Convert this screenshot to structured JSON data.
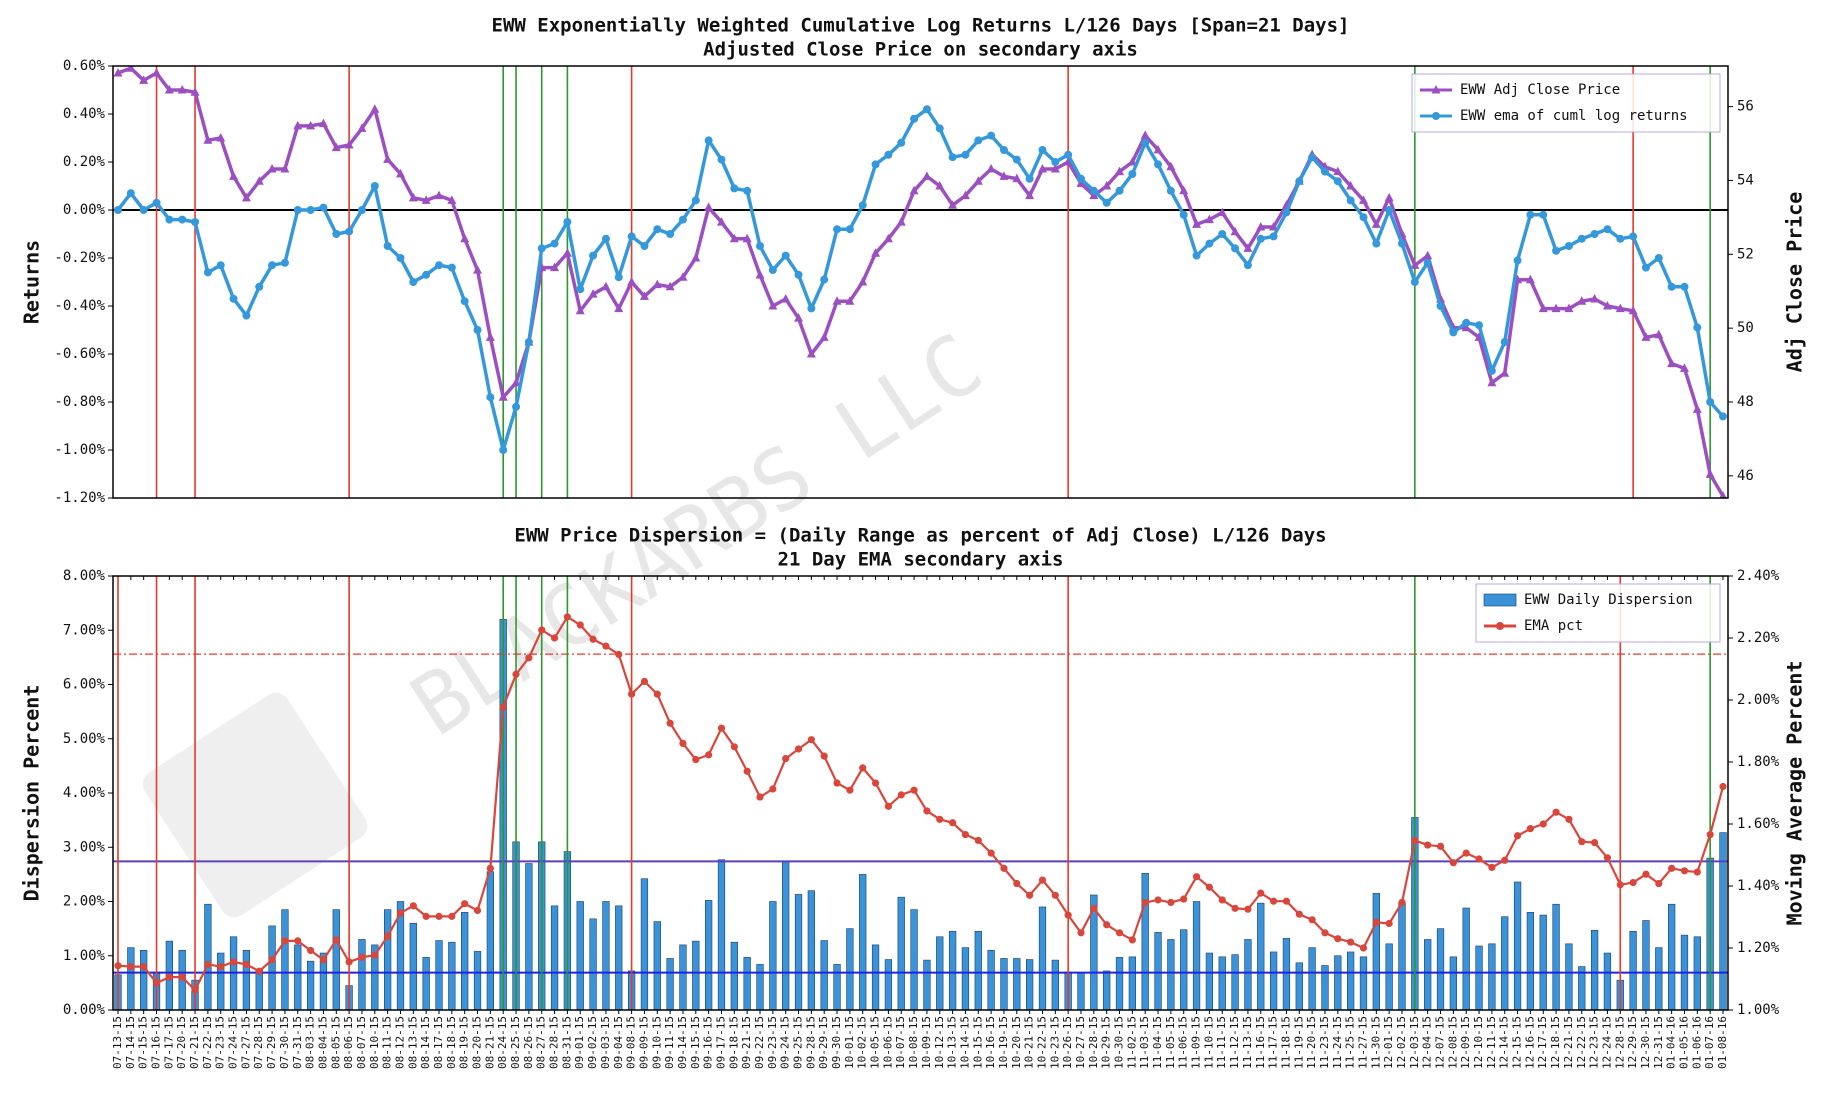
{
  "watermark": "BLACKARBS LLC",
  "chart_data": [
    {
      "type": "line",
      "title": "EWW Exponentially Weighted Cumulative Log Returns L/126 Days [Span=21 Days]",
      "subtitle": "Adjusted Close Price on secondary axis",
      "ylabel": "Returns",
      "y2label": "Adj Close Price",
      "ylim": [
        -1.2,
        0.6
      ],
      "yticks": [
        {
          "value": 0.6,
          "label": "0.60%"
        },
        {
          "value": 0.4,
          "label": "0.40%"
        },
        {
          "value": 0.2,
          "label": "0.20%"
        },
        {
          "value": 0,
          "label": "0.00%"
        },
        {
          "value": -0.2,
          "label": "-0.20%"
        },
        {
          "value": -0.4,
          "label": "-0.40%"
        },
        {
          "value": -0.6,
          "label": "-0.60%"
        },
        {
          "value": -0.8,
          "label": "-0.80%"
        },
        {
          "value": -1.0,
          "label": "-1.00%"
        },
        {
          "value": -1.2,
          "label": "-1.20%"
        }
      ],
      "y2lim": [
        45.4,
        57.1
      ],
      "y2ticks": [
        46,
        48,
        50,
        52,
        54,
        56
      ],
      "legend": "upper right",
      "hlines": [
        {
          "value": 0,
          "color": "#000000"
        }
      ],
      "vlines": [
        {
          "x": "07-16-15",
          "color": "#e8392b"
        },
        {
          "x": "07-21-15",
          "color": "#e8392b"
        },
        {
          "x": "08-06-15",
          "color": "#e8392b"
        },
        {
          "x": "09-08-15",
          "color": "#e8392b"
        },
        {
          "x": "10-26-15",
          "color": "#e8392b"
        },
        {
          "x": "12-29-15",
          "color": "#e8392b"
        },
        {
          "x": "08-24-15",
          "color": "#2b9a2b"
        },
        {
          "x": "08-25-15",
          "color": "#2b9a2b"
        },
        {
          "x": "08-27-15",
          "color": "#2b9a2b"
        },
        {
          "x": "08-31-15",
          "color": "#2b9a2b"
        },
        {
          "x": "12-03-15",
          "color": "#2b9a2b"
        },
        {
          "x": "01-07-16",
          "color": "#2b9a2b"
        }
      ],
      "series": [
        {
          "name": "EWW Adj Close Price",
          "color": "#9b4fc0",
          "type": "line",
          "marker": "triangle",
          "axis": "y2",
          "values": [
            56.91,
            57.04,
            56.71,
            56.91,
            56.45,
            56.45,
            56.39,
            55.09,
            55.15,
            54.11,
            53.53,
            53.98,
            54.31,
            54.31,
            55.48,
            55.48,
            55.54,
            54.89,
            54.96,
            55.41,
            55.93,
            54.57,
            54.18,
            53.53,
            53.46,
            53.59,
            53.46,
            52.42,
            51.57,
            49.75,
            48.13,
            48.52,
            49.62,
            51.64,
            51.64,
            52.03,
            50.47,
            50.92,
            51.12,
            50.53,
            51.25,
            50.86,
            51.18,
            51.12,
            51.38,
            51.9,
            53.27,
            52.87,
            52.42,
            52.42,
            51.44,
            50.6,
            50.79,
            50.27,
            49.3,
            49.75,
            50.73,
            50.73,
            51.25,
            52.03,
            52.42,
            52.87,
            53.72,
            54.11,
            53.85,
            53.33,
            53.59,
            53.98,
            54.31,
            54.11,
            54.05,
            53.59,
            54.31,
            54.31,
            54.5,
            53.92,
            53.59,
            53.85,
            54.24,
            54.5,
            55.22,
            54.83,
            54.37,
            53.72,
            52.81,
            52.94,
            53.13,
            52.61,
            52.16,
            52.74,
            52.74,
            53.33,
            53.98,
            54.7,
            54.37,
            54.24,
            53.85,
            53.46,
            52.81,
            53.53,
            52.55,
            51.7,
            51.96,
            50.79,
            50.01,
            50.01,
            49.75,
            48.52,
            48.78,
            51.31,
            51.31,
            50.53,
            50.53,
            50.53,
            50.73,
            50.79,
            50.6,
            50.53,
            50.47,
            49.75,
            49.82,
            49.04,
            48.91,
            47.8,
            46.04,
            45.45
          ]
        },
        {
          "name": "EWW ema of cuml log returns",
          "color": "#3498db",
          "type": "line",
          "marker": "circle",
          "axis": "y",
          "values": [
            0.0,
            0.07,
            0.0,
            0.03,
            -0.04,
            -0.04,
            -0.05,
            -0.26,
            -0.23,
            -0.37,
            -0.44,
            -0.32,
            -0.23,
            -0.22,
            0.0,
            0.0,
            0.01,
            -0.1,
            -0.09,
            0.0,
            0.1,
            -0.15,
            -0.2,
            -0.3,
            -0.27,
            -0.23,
            -0.24,
            -0.38,
            -0.5,
            -0.78,
            -1.0,
            -0.82,
            -0.55,
            -0.16,
            -0.14,
            -0.05,
            -0.33,
            -0.19,
            -0.12,
            -0.28,
            -0.11,
            -0.15,
            -0.08,
            -0.1,
            -0.04,
            0.04,
            0.29,
            0.21,
            0.09,
            0.08,
            -0.15,
            -0.25,
            -0.19,
            -0.27,
            -0.41,
            -0.29,
            -0.08,
            -0.08,
            0.02,
            0.19,
            0.23,
            0.28,
            0.38,
            0.42,
            0.34,
            0.22,
            0.23,
            0.29,
            0.31,
            0.25,
            0.21,
            0.13,
            0.25,
            0.2,
            0.23,
            0.13,
            0.08,
            0.03,
            0.08,
            0.15,
            0.28,
            0.19,
            0.08,
            -0.02,
            -0.19,
            -0.14,
            -0.1,
            -0.16,
            -0.23,
            -0.12,
            -0.11,
            -0.01,
            0.12,
            0.22,
            0.16,
            0.12,
            0.04,
            -0.03,
            -0.14,
            0.0,
            -0.14,
            -0.3,
            -0.22,
            -0.4,
            -0.51,
            -0.47,
            -0.48,
            -0.67,
            -0.55,
            -0.21,
            -0.02,
            -0.02,
            -0.17,
            -0.15,
            -0.12,
            -0.1,
            -0.08,
            -0.12,
            -0.11,
            -0.24,
            -0.2,
            -0.32,
            -0.32,
            -0.49,
            -0.8,
            -0.86
          ]
        }
      ]
    },
    {
      "type": "bar",
      "title": "EWW Price Dispersion = (Daily Range as percent of Adj Close) L/126 Days",
      "subtitle": "21 Day EMA secondary axis",
      "ylabel": "Dispersion Percent",
      "y2label": "Moving Average Percent",
      "categories": [
        "07-13-15",
        "07-14-15",
        "07-15-15",
        "07-16-15",
        "07-17-15",
        "07-20-15",
        "07-21-15",
        "07-22-15",
        "07-23-15",
        "07-24-15",
        "07-27-15",
        "07-28-15",
        "07-29-15",
        "07-30-15",
        "07-31-15",
        "08-03-15",
        "08-04-15",
        "08-05-15",
        "08-06-15",
        "08-07-15",
        "08-10-15",
        "08-11-15",
        "08-12-15",
        "08-13-15",
        "08-14-15",
        "08-17-15",
        "08-18-15",
        "08-19-15",
        "08-20-15",
        "08-21-15",
        "08-24-15",
        "08-25-15",
        "08-26-15",
        "08-27-15",
        "08-28-15",
        "08-31-15",
        "09-01-15",
        "09-02-15",
        "09-03-15",
        "09-04-15",
        "09-08-15",
        "09-09-15",
        "09-10-15",
        "09-11-15",
        "09-14-15",
        "09-15-15",
        "09-16-15",
        "09-17-15",
        "09-18-15",
        "09-21-15",
        "09-22-15",
        "09-23-15",
        "09-24-15",
        "09-25-15",
        "09-28-15",
        "09-29-15",
        "09-30-15",
        "10-01-15",
        "10-02-15",
        "10-05-15",
        "10-06-15",
        "10-07-15",
        "10-08-15",
        "10-09-15",
        "10-12-15",
        "10-13-15",
        "10-14-15",
        "10-15-15",
        "10-16-15",
        "10-19-15",
        "10-20-15",
        "10-21-15",
        "10-22-15",
        "10-23-15",
        "10-26-15",
        "10-27-15",
        "10-28-15",
        "10-29-15",
        "10-30-15",
        "11-02-15",
        "11-03-15",
        "11-04-15",
        "11-05-15",
        "11-06-15",
        "11-09-15",
        "11-10-15",
        "11-11-15",
        "11-12-15",
        "11-13-15",
        "11-16-15",
        "11-17-15",
        "11-18-15",
        "11-19-15",
        "11-20-15",
        "11-23-15",
        "11-24-15",
        "11-25-15",
        "11-27-15",
        "11-30-15",
        "12-01-15",
        "12-02-15",
        "12-03-15",
        "12-04-15",
        "12-07-15",
        "12-08-15",
        "12-09-15",
        "12-10-15",
        "12-11-15",
        "12-14-15",
        "12-15-15",
        "12-16-15",
        "12-17-15",
        "12-18-15",
        "12-21-15",
        "12-22-15",
        "12-23-15",
        "12-24-15",
        "12-28-15",
        "12-29-15",
        "12-30-15",
        "12-31-15",
        "01-04-16",
        "01-05-16",
        "01-06-16",
        "01-07-16",
        "01-08-16"
      ],
      "ylim": [
        0,
        8
      ],
      "yticks": [
        {
          "value": 0,
          "label": "0.00%"
        },
        {
          "value": 1,
          "label": "1.00%"
        },
        {
          "value": 2,
          "label": "2.00%"
        },
        {
          "value": 3,
          "label": "3.00%"
        },
        {
          "value": 4,
          "label": "4.00%"
        },
        {
          "value": 5,
          "label": "5.00%"
        },
        {
          "value": 6,
          "label": "6.00%"
        },
        {
          "value": 7,
          "label": "7.00%"
        },
        {
          "value": 8,
          "label": "8.00%"
        }
      ],
      "y2lim": [
        1.0,
        2.4
      ],
      "y2ticks": [
        {
          "value": 1.0,
          "label": "1.00%"
        },
        {
          "value": 1.2,
          "label": "1.20%"
        },
        {
          "value": 1.4,
          "label": "1.40%"
        },
        {
          "value": 1.6,
          "label": "1.60%"
        },
        {
          "value": 1.8,
          "label": "1.80%"
        },
        {
          "value": 2.0,
          "label": "2.00%"
        },
        {
          "value": 2.2,
          "label": "2.20%"
        },
        {
          "value": 2.4,
          "label": "2.40%"
        }
      ],
      "legend": "upper right",
      "hlines": [
        {
          "value": 2.74,
          "color": "#5e3fbe"
        },
        {
          "value": 0.69,
          "color": "#2323dd"
        },
        {
          "value": 6.56,
          "color": "#e8392b",
          "style": "dashdot"
        }
      ],
      "vlines": [
        {
          "x": "07-13-15",
          "color": "#e8392b"
        },
        {
          "x": "07-16-15",
          "color": "#e8392b"
        },
        {
          "x": "07-21-15",
          "color": "#e8392b"
        },
        {
          "x": "08-06-15",
          "color": "#e8392b"
        },
        {
          "x": "09-08-15",
          "color": "#e8392b"
        },
        {
          "x": "10-26-15",
          "color": "#e8392b"
        },
        {
          "x": "12-28-15",
          "color": "#e8392b"
        },
        {
          "x": "08-24-15",
          "color": "#2b9a2b"
        },
        {
          "x": "08-25-15",
          "color": "#2b9a2b"
        },
        {
          "x": "08-27-15",
          "color": "#2b9a2b"
        },
        {
          "x": "08-31-15",
          "color": "#2b9a2b"
        },
        {
          "x": "12-03-15",
          "color": "#2b9a2b"
        },
        {
          "x": "01-07-16",
          "color": "#2b9a2b"
        }
      ],
      "series": [
        {
          "name": "EWW Daily Dispersion",
          "color": "#3a92d8",
          "type": "bar",
          "axis": "y",
          "values": [
            0.65,
            1.15,
            1.1,
            0.7,
            1.27,
            1.1,
            0.55,
            1.95,
            1.05,
            1.35,
            1.1,
            0.75,
            1.55,
            1.85,
            1.2,
            0.9,
            1.05,
            1.85,
            0.45,
            1.3,
            1.2,
            1.85,
            2.0,
            1.6,
            0.97,
            1.28,
            1.25,
            1.8,
            1.08,
            2.55,
            7.2,
            3.1,
            2.7,
            3.1,
            1.92,
            2.92,
            2.0,
            1.68,
            2.0,
            1.92,
            0.72,
            2.42,
            1.63,
            0.95,
            1.2,
            1.27,
            2.02,
            2.77,
            1.25,
            0.97,
            0.84,
            2.0,
            2.73,
            2.13,
            2.2,
            1.28,
            0.84,
            1.5,
            2.5,
            1.2,
            0.93,
            2.08,
            1.85,
            0.92,
            1.35,
            1.45,
            1.15,
            1.45,
            1.1,
            0.95,
            0.95,
            0.93,
            1.9,
            0.92,
            0.7,
            0.68,
            2.12,
            0.72,
            0.97,
            0.98,
            2.52,
            1.43,
            1.3,
            1.48,
            2.0,
            1.05,
            0.98,
            1.02,
            1.3,
            1.97,
            1.07,
            1.32,
            0.87,
            1.15,
            0.82,
            1.0,
            1.07,
            0.98,
            2.15,
            1.22,
            1.98,
            3.55,
            1.3,
            1.5,
            0.98,
            1.88,
            1.18,
            1.22,
            1.72,
            2.36,
            1.8,
            1.75,
            1.95,
            1.22,
            0.8,
            1.47,
            1.05,
            0.55,
            1.45,
            1.65,
            1.15,
            1.95,
            1.38,
            1.35,
            2.8,
            3.27
          ]
        },
        {
          "name": "EMA pct",
          "color": "#d9463b",
          "type": "line",
          "marker": "circle",
          "axis": "y2",
          "values": [
            1.143,
            1.14,
            1.14,
            1.087,
            1.106,
            1.106,
            1.064,
            1.147,
            1.14,
            1.155,
            1.147,
            1.125,
            1.162,
            1.223,
            1.223,
            1.192,
            1.162,
            1.226,
            1.155,
            1.17,
            1.177,
            1.238,
            1.313,
            1.336,
            1.302,
            1.302,
            1.302,
            1.343,
            1.321,
            1.457,
            1.977,
            2.083,
            2.136,
            2.226,
            2.2,
            2.268,
            2.242,
            2.196,
            2.174,
            2.147,
            2.019,
            2.06,
            2.019,
            1.925,
            1.86,
            1.808,
            1.823,
            1.909,
            1.849,
            1.77,
            1.687,
            1.713,
            1.811,
            1.842,
            1.872,
            1.819,
            1.732,
            1.709,
            1.781,
            1.732,
            1.657,
            1.694,
            1.709,
            1.642,
            1.615,
            1.604,
            1.566,
            1.547,
            1.506,
            1.457,
            1.408,
            1.37,
            1.419,
            1.37,
            1.306,
            1.249,
            1.328,
            1.275,
            1.249,
            1.226,
            1.347,
            1.355,
            1.347,
            1.358,
            1.43,
            1.396,
            1.355,
            1.328,
            1.325,
            1.377,
            1.351,
            1.351,
            1.309,
            1.291,
            1.249,
            1.23,
            1.219,
            1.2,
            1.283,
            1.279,
            1.347,
            1.547,
            1.532,
            1.528,
            1.475,
            1.506,
            1.487,
            1.46,
            1.483,
            1.562,
            1.585,
            1.6,
            1.638,
            1.615,
            1.543,
            1.54,
            1.491,
            1.404,
            1.411,
            1.438,
            1.408,
            1.457,
            1.449,
            1.445,
            1.566,
            1.721
          ]
        }
      ]
    }
  ]
}
